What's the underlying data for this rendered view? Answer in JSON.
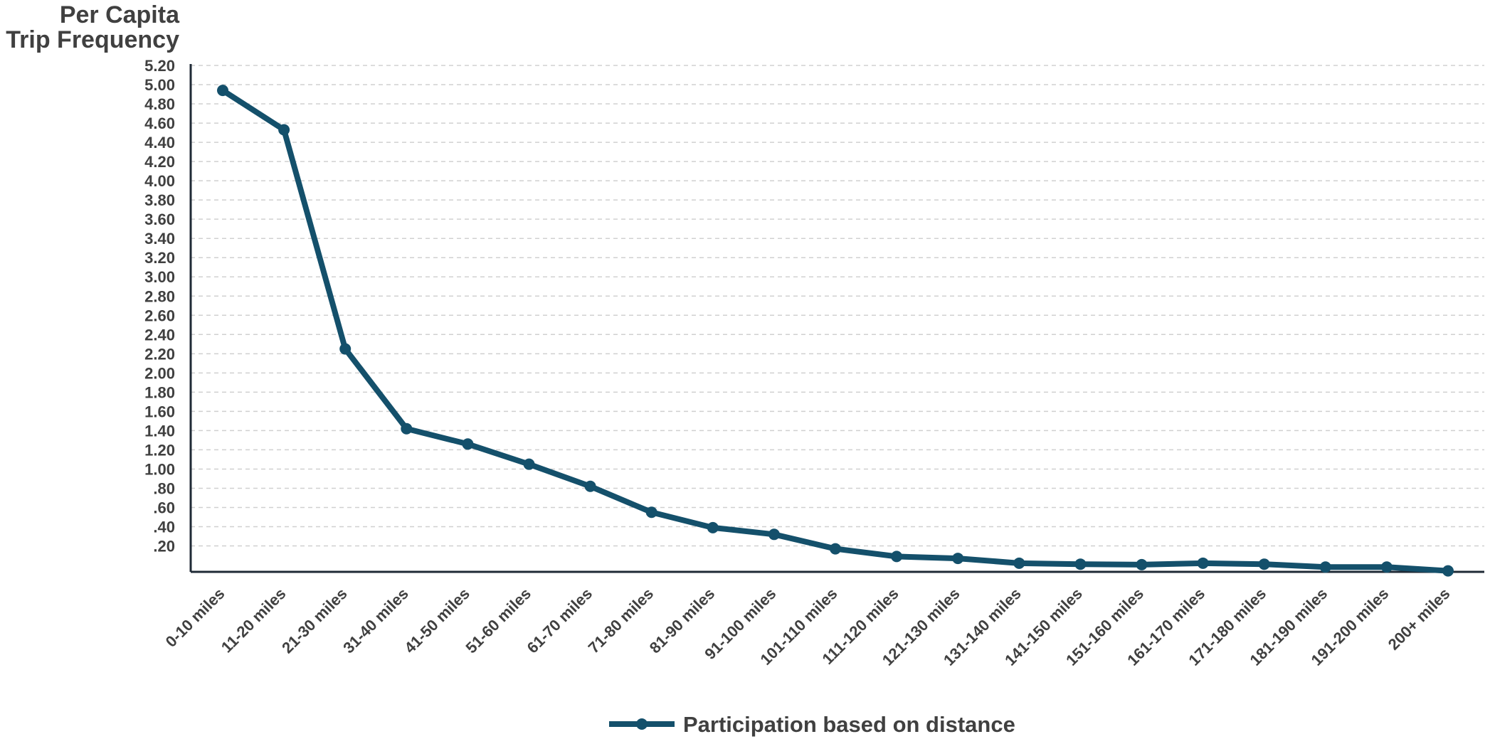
{
  "chart_data": {
    "type": "line",
    "ylabel_lines": [
      "Per Capita",
      "Trip Frequency"
    ],
    "categories": [
      "0-10 miles",
      "11-20 miles",
      "21-30 miles",
      "31-40 miles",
      "41-50 miles",
      "51-60 miles",
      "61-70 miles",
      "71-80 miles",
      "81-90 miles",
      "91-100 miles",
      "101-110 miles",
      "111-120 miles",
      "121-130 miles",
      "131-140 miles",
      "141-150 miles",
      "151-160 miles",
      "161-170 miles",
      "171-180 miles",
      "181-190 miles",
      "191-200 miles",
      "200+ miles"
    ],
    "series": [
      {
        "name": "Participation based on distance",
        "color": "#14506b",
        "values": [
          4.94,
          4.53,
          2.25,
          1.42,
          1.26,
          1.05,
          0.82,
          0.55,
          0.39,
          0.32,
          0.17,
          0.09,
          0.07,
          0.02,
          0.01,
          0.005,
          0.02,
          0.01,
          -0.02,
          -0.02,
          -0.06
        ]
      }
    ],
    "ylim": [
      -0.07,
      5.2
    ],
    "yticks": [
      0.2,
      0.4,
      0.6,
      0.8,
      1.0,
      1.2,
      1.4,
      1.6,
      1.8,
      2.0,
      2.2,
      2.4,
      2.6,
      2.8,
      3.0,
      3.2,
      3.4,
      3.6,
      3.8,
      4.0,
      4.2,
      4.4,
      4.6,
      4.8,
      5.0,
      5.2
    ],
    "ytick_labels": [
      ".20",
      ".40",
      ".60",
      ".80",
      "1.00",
      "1.20",
      "1.40",
      "1.60",
      "1.80",
      "2.00",
      "2.20",
      "2.40",
      "2.60",
      "2.80",
      "3.00",
      "3.20",
      "3.40",
      "3.60",
      "3.80",
      "4.00",
      "4.20",
      "4.40",
      "4.60",
      "4.80",
      "5.00",
      "5.20"
    ],
    "grid": true,
    "legend_position": "bottom-center"
  }
}
